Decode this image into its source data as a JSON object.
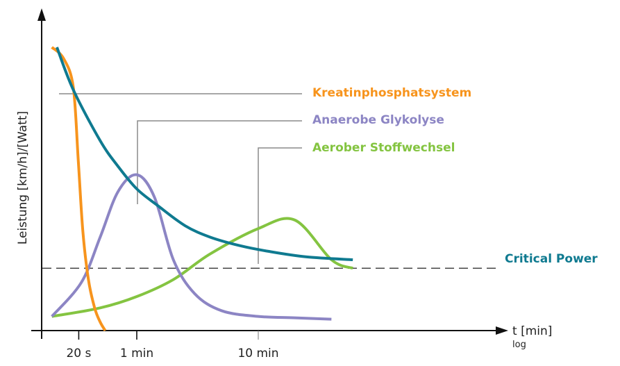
{
  "chart_data": {
    "type": "line",
    "title": "",
    "xlabel": "t [min]",
    "xlabel_sub": "log",
    "ylabel": "Leistung [km/h]/[Watt]",
    "x_scale": "log",
    "x_unit": "min",
    "xlim_min": [
      0.2,
      60
    ],
    "ylim": [
      0,
      100
    ],
    "grid": false,
    "x_ticks": [
      {
        "label": "20 s",
        "value_min": 0.333
      },
      {
        "label": "1 min",
        "value_min": 1
      },
      {
        "label": "10 min",
        "value_min": 10
      }
    ],
    "reference_line": {
      "name": "Critical Power threshold",
      "style": "dashed",
      "y": 22
    },
    "series": [
      {
        "name": "Kreatinphosphatsystem",
        "color": "#f7941d",
        "x": [
          0.2,
          0.25,
          0.3,
          0.33,
          0.36,
          0.4,
          0.45,
          0.5,
          0.55
        ],
        "y": [
          100,
          96,
          86,
          60,
          35,
          18,
          8,
          3,
          0
        ]
      },
      {
        "name": "Anaerobe Glykolyse",
        "color": "#8c85c4",
        "x": [
          0.2,
          0.35,
          0.5,
          0.7,
          1.0,
          1.4,
          2.0,
          3.0,
          5.0,
          10,
          20,
          40
        ],
        "y": [
          5,
          17,
          33,
          49,
          55,
          47,
          25,
          13,
          7,
          5,
          4.5,
          4
        ]
      },
      {
        "name": "Aerober Stoffwechsel",
        "color": "#84c441",
        "x": [
          0.2,
          0.5,
          1.0,
          2.0,
          4.0,
          10,
          20,
          40,
          60
        ],
        "y": [
          5,
          8,
          12,
          18,
          27,
          36,
          39,
          25,
          22
        ]
      },
      {
        "name": "Critical Power",
        "color": "#0f7a90",
        "x": [
          0.22,
          0.3,
          0.5,
          0.7,
          1.0,
          1.5,
          2.5,
          4,
          7,
          12,
          25,
          60
        ],
        "y": [
          100,
          85,
          67,
          58,
          50,
          44,
          37,
          33,
          30,
          28,
          26,
          25
        ]
      }
    ],
    "legend": [
      {
        "label": "Kreatinphosphatsystem",
        "color": "#f7941d"
      },
      {
        "label": "Anaerobe Glykolyse",
        "color": "#8c85c4"
      },
      {
        "label": "Aerober Stoffwechsel",
        "color": "#84c441"
      },
      {
        "label": "Critical Power",
        "color": "#0f7a90"
      }
    ],
    "legend_placement": "leader-lines right"
  }
}
